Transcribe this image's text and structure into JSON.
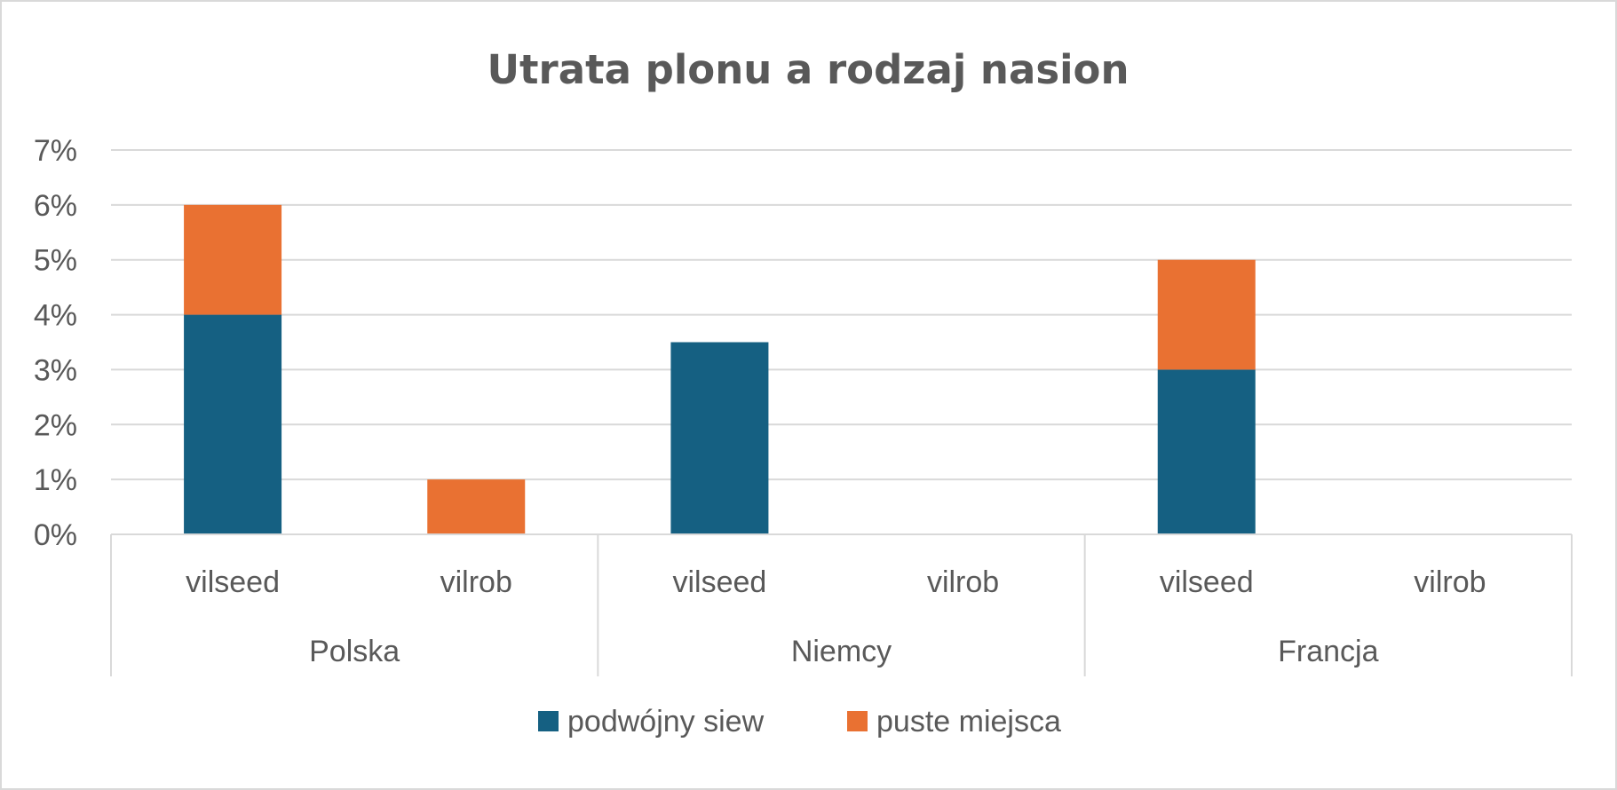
{
  "chart_data": {
    "type": "bar",
    "stacked": true,
    "title": "Utrata plonu a rodzaj nasion",
    "groups": [
      {
        "label": "Polska",
        "categories": [
          "vilseed",
          "vilrob"
        ]
      },
      {
        "label": "Niemcy",
        "categories": [
          "vilseed",
          "vilrob"
        ]
      },
      {
        "label": "Francja",
        "categories": [
          "vilseed",
          "vilrob"
        ]
      }
    ],
    "series": [
      {
        "name": "podwójny siew",
        "color": "#156082",
        "values": [
          4,
          0,
          3.5,
          0,
          3,
          0
        ]
      },
      {
        "name": "puste miejsca",
        "color": "#E97132",
        "values": [
          2,
          1,
          0,
          0,
          2,
          0
        ]
      }
    ],
    "ylim": [
      0,
      7
    ],
    "yticks": [
      0,
      1,
      2,
      3,
      4,
      5,
      6,
      7
    ],
    "ytick_labels": [
      "0%",
      "1%",
      "2%",
      "3%",
      "4%",
      "5%",
      "6%",
      "7%"
    ],
    "grid": true,
    "legend_position": "bottom",
    "gridline_color": "#d9d9d9",
    "text_color": "#595959"
  }
}
